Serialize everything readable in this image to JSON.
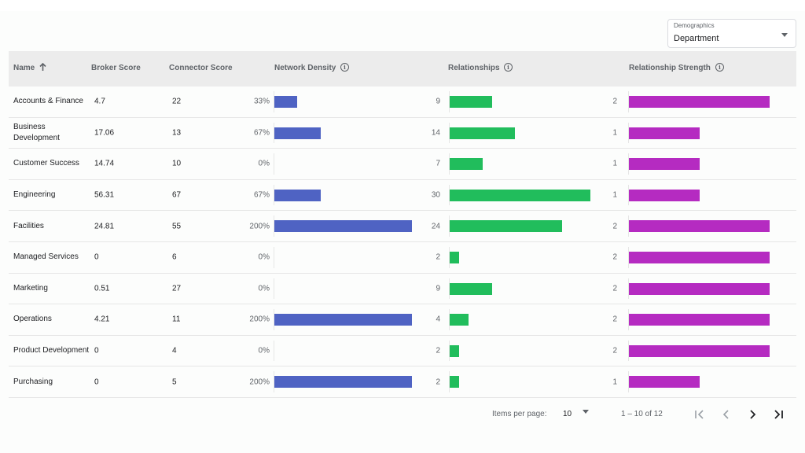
{
  "demographics": {
    "label": "Demographics",
    "value": "Department"
  },
  "table": {
    "headers": {
      "name": "Name",
      "broker": "Broker Score",
      "connector": "Connector Score",
      "density": "Network Density",
      "relationships": "Relationships",
      "strength": "Relationship Strength"
    },
    "rows": [
      {
        "name": "Accounts & Finance",
        "broker": "4.7",
        "connector": "22",
        "density": "33%",
        "density_value": 33,
        "relationships": "9",
        "relationships_value": 9,
        "strength": "2",
        "strength_value": 2
      },
      {
        "name": "Business Development",
        "broker": "17.06",
        "connector": "13",
        "density": "67%",
        "density_value": 67,
        "relationships": "14",
        "relationships_value": 14,
        "strength": "1",
        "strength_value": 1
      },
      {
        "name": "Customer Success",
        "broker": "14.74",
        "connector": "10",
        "density": "0%",
        "density_value": 0,
        "relationships": "7",
        "relationships_value": 7,
        "strength": "1",
        "strength_value": 1
      },
      {
        "name": "Engineering",
        "broker": "56.31",
        "connector": "67",
        "density": "67%",
        "density_value": 67,
        "relationships": "30",
        "relationships_value": 30,
        "strength": "1",
        "strength_value": 1
      },
      {
        "name": "Facilities",
        "broker": "24.81",
        "connector": "55",
        "density": "200%",
        "density_value": 200,
        "relationships": "24",
        "relationships_value": 24,
        "strength": "2",
        "strength_value": 2
      },
      {
        "name": "Managed Services",
        "broker": "0",
        "connector": "6",
        "density": "0%",
        "density_value": 0,
        "relationships": "2",
        "relationships_value": 2,
        "strength": "2",
        "strength_value": 2
      },
      {
        "name": "Marketing",
        "broker": "0.51",
        "connector": "27",
        "density": "0%",
        "density_value": 0,
        "relationships": "9",
        "relationships_value": 9,
        "strength": "2",
        "strength_value": 2
      },
      {
        "name": "Operations",
        "broker": "4.21",
        "connector": "11",
        "density": "200%",
        "density_value": 200,
        "relationships": "4",
        "relationships_value": 4,
        "strength": "2",
        "strength_value": 2
      },
      {
        "name": "Product Development",
        "broker": "0",
        "connector": "4",
        "density": "0%",
        "density_value": 0,
        "relationships": "2",
        "relationships_value": 2,
        "strength": "2",
        "strength_value": 2
      },
      {
        "name": "Purchasing",
        "broker": "0",
        "connector": "5",
        "density": "200%",
        "density_value": 200,
        "relationships": "2",
        "relationships_value": 2,
        "strength": "1",
        "strength_value": 1
      }
    ]
  },
  "paginator": {
    "items_per_page_label": "Items per page:",
    "page_size": "10",
    "range": "1 – 10 of 12"
  },
  "colors": {
    "density_bar": "#4f63c3",
    "relationships_bar": "#21bd5c",
    "strength_bar": "#b52bc1"
  }
}
